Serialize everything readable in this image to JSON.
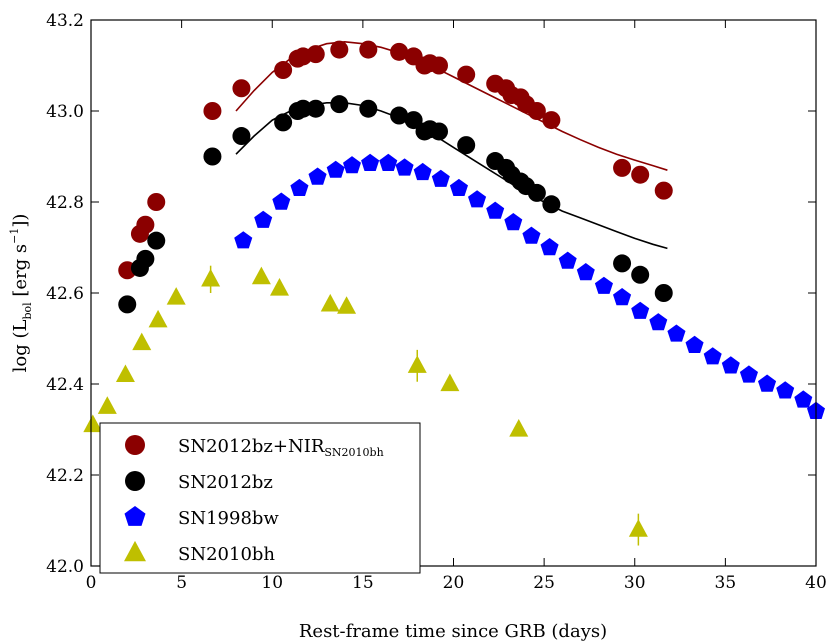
{
  "chart_data": {
    "type": "scatter",
    "xlabel": "Rest-frame time since GRB (days)",
    "ylabel_main": "log (L",
    "ylabel_sub": "bol",
    "ylabel_rest": " [erg s",
    "ylabel_exp": "−1",
    "ylabel_close": "])",
    "xlim": [
      0,
      40
    ],
    "ylim": [
      42.0,
      43.2
    ],
    "x_ticks": [
      {
        "value": 0,
        "label": "0"
      },
      {
        "value": 5,
        "label": "5"
      },
      {
        "value": 10,
        "label": "10"
      },
      {
        "value": 15,
        "label": "15"
      },
      {
        "value": 20,
        "label": "20"
      },
      {
        "value": 25,
        "label": "25"
      },
      {
        "value": 30,
        "label": "30"
      },
      {
        "value": 35,
        "label": "35"
      },
      {
        "value": 40,
        "label": "40"
      }
    ],
    "y_ticks": [
      {
        "value": 42.0,
        "label": "42.0"
      },
      {
        "value": 42.2,
        "label": "42.2"
      },
      {
        "value": 42.4,
        "label": "42.4"
      },
      {
        "value": 42.6,
        "label": "42.6"
      },
      {
        "value": 42.8,
        "label": "42.8"
      },
      {
        "value": 43.0,
        "label": "43.0"
      },
      {
        "value": 43.2,
        "label": "43.2"
      }
    ],
    "legend_position": "lower-left",
    "series": [
      {
        "name": "SN2012bz+NIR",
        "name_sub": "SN2010bh",
        "marker": "circle",
        "color": "#8b0000",
        "x": [
          2.0,
          2.7,
          3.0,
          3.6,
          6.7,
          8.3,
          10.6,
          11.4,
          11.7,
          12.4,
          13.7,
          15.3,
          17.0,
          17.8,
          18.4,
          18.7,
          19.2,
          20.7,
          22.3,
          22.9,
          23.2,
          23.7,
          24.0,
          24.6,
          25.4,
          29.3,
          30.3,
          31.6
        ],
        "y": [
          42.65,
          42.73,
          42.75,
          42.8,
          43.0,
          43.05,
          43.09,
          43.115,
          43.12,
          43.125,
          43.135,
          43.135,
          43.13,
          43.12,
          43.1,
          43.105,
          43.1,
          43.08,
          43.06,
          43.05,
          43.035,
          43.03,
          43.015,
          43.0,
          42.98,
          42.875,
          42.86,
          42.825
        ]
      },
      {
        "name": "SN2012bz",
        "name_sub": "",
        "marker": "circle",
        "color": "#000000",
        "x": [
          2.0,
          2.7,
          3.0,
          3.6,
          6.7,
          8.3,
          10.6,
          11.4,
          11.7,
          12.4,
          13.7,
          15.3,
          17.0,
          17.8,
          18.4,
          18.7,
          19.2,
          20.7,
          22.3,
          22.9,
          23.2,
          23.7,
          24.0,
          24.6,
          25.4,
          29.3,
          30.3,
          31.6
        ],
        "y": [
          42.575,
          42.655,
          42.675,
          42.715,
          42.9,
          42.945,
          42.975,
          43.0,
          43.005,
          43.005,
          43.015,
          43.005,
          42.99,
          42.98,
          42.955,
          42.96,
          42.955,
          42.925,
          42.89,
          42.875,
          42.86,
          42.845,
          42.835,
          42.82,
          42.795,
          42.665,
          42.64,
          42.6
        ]
      },
      {
        "name": "SN1998bw",
        "name_sub": "",
        "marker": "pentagon",
        "color": "#0000ff",
        "x": [
          8.4,
          9.5,
          10.5,
          11.5,
          12.5,
          13.5,
          14.4,
          15.4,
          16.4,
          17.3,
          18.3,
          19.3,
          20.3,
          21.3,
          22.3,
          23.3,
          24.3,
          25.3,
          26.3,
          27.3,
          28.3,
          29.3,
          30.3,
          31.3,
          32.3,
          33.3,
          34.3,
          35.3,
          36.3,
          37.3,
          38.3,
          39.3,
          40.0
        ],
        "y": [
          42.715,
          42.76,
          42.8,
          42.83,
          42.855,
          42.87,
          42.88,
          42.885,
          42.885,
          42.875,
          42.865,
          42.85,
          42.83,
          42.805,
          42.78,
          42.755,
          42.725,
          42.7,
          42.67,
          42.645,
          42.615,
          42.59,
          42.56,
          42.535,
          42.51,
          42.485,
          42.46,
          42.44,
          42.42,
          42.4,
          42.385,
          42.365,
          42.34
        ]
      },
      {
        "name": "SN2010bh",
        "name_sub": "",
        "marker": "triangle",
        "color": "#bfbf00",
        "x": [
          0.1,
          0.9,
          1.9,
          2.8,
          3.7,
          4.7,
          6.6,
          9.4,
          10.4,
          13.2,
          14.1,
          18.0,
          19.8,
          23.6,
          30.2
        ],
        "y": [
          42.31,
          42.35,
          42.42,
          42.49,
          42.54,
          42.59,
          42.63,
          42.635,
          42.61,
          42.575,
          42.57,
          42.44,
          42.4,
          42.3,
          42.08
        ],
        "error": [
          0.0,
          0.0,
          0.0,
          0.0,
          0.0,
          0.0,
          0.03,
          0.0,
          0.0,
          0.0,
          0.0,
          0.035,
          0.0,
          0.0,
          0.035
        ]
      }
    ],
    "fit_curves": [
      {
        "name": "SN2012bz+NIR fit",
        "color": "#8b0000",
        "x": [
          8,
          9,
          10,
          11,
          12,
          13,
          14,
          15,
          16,
          17,
          18,
          19,
          20,
          21,
          22,
          23,
          24,
          25,
          26,
          27,
          28,
          29,
          30,
          31,
          31.8
        ],
        "y": [
          43.0,
          43.045,
          43.085,
          43.115,
          43.135,
          43.148,
          43.152,
          43.148,
          43.14,
          43.128,
          43.112,
          43.095,
          43.075,
          43.055,
          43.035,
          43.015,
          42.995,
          42.975,
          42.955,
          42.937,
          42.92,
          42.905,
          42.892,
          42.88,
          42.87
        ]
      },
      {
        "name": "SN2012bz fit",
        "color": "#000000",
        "x": [
          8,
          9,
          10,
          11,
          12,
          13,
          14,
          15,
          16,
          17,
          18,
          19,
          20,
          21,
          22,
          23,
          24,
          25,
          26,
          27,
          28,
          29,
          30,
          31,
          31.8
        ],
        "y": [
          42.905,
          42.945,
          42.98,
          43.0,
          43.012,
          43.018,
          43.018,
          43.012,
          43.0,
          42.985,
          42.965,
          42.945,
          42.92,
          42.895,
          42.87,
          42.845,
          42.82,
          42.8,
          42.78,
          42.765,
          42.75,
          42.735,
          42.72,
          42.707,
          42.698
        ]
      }
    ]
  }
}
